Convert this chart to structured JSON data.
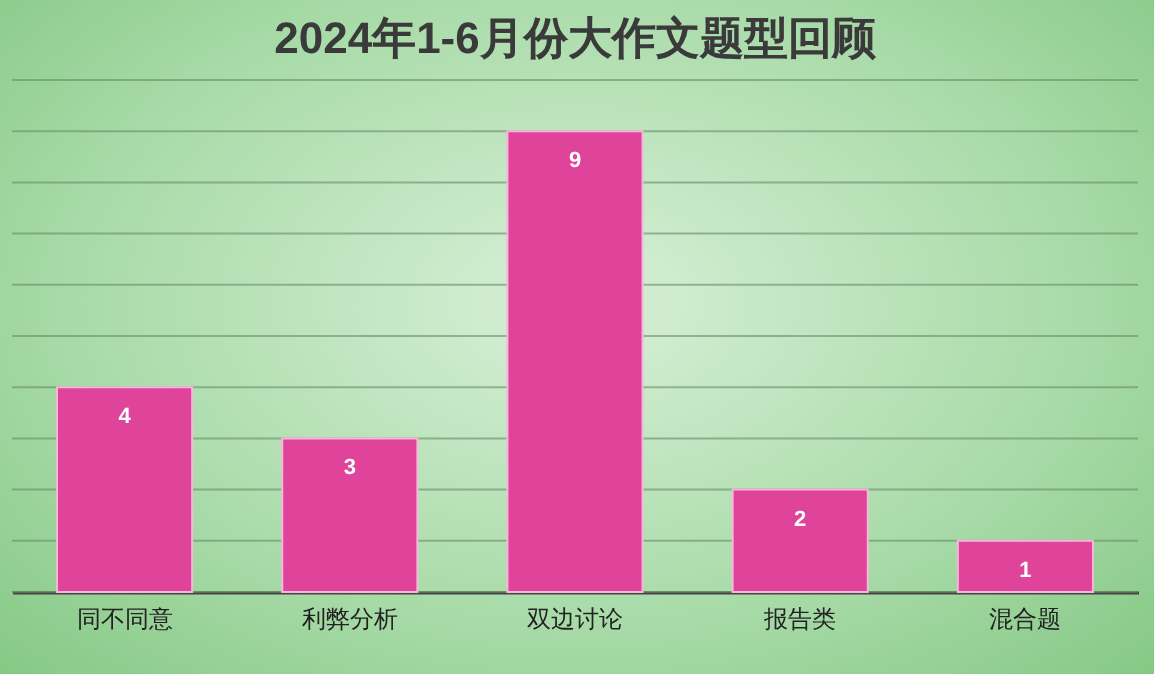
{
  "chart_data": {
    "type": "bar",
    "title": "2024年1-6月份大作文题型回顾",
    "categories": [
      "同不同意",
      "利弊分析",
      "双边讨论",
      "报告类",
      "混合题"
    ],
    "values": [
      4,
      3,
      9,
      2,
      1
    ],
    "color": "#e0449a",
    "ylim": [
      0,
      10
    ],
    "yticks": [
      {
        "value": 0,
        "label": null
      },
      {
        "value": 1,
        "label": null
      },
      {
        "value": 2,
        "label": null
      },
      {
        "value": 3,
        "label": null
      },
      {
        "value": 4,
        "label": null
      },
      {
        "value": 5,
        "label": null
      },
      {
        "value": 6,
        "label": null
      },
      {
        "value": 7,
        "label": null
      },
      {
        "value": 8,
        "label": null
      },
      {
        "value": 9,
        "label": null
      },
      {
        "value": 10,
        "label": null
      }
    ],
    "grid": "y",
    "tick_labels": "x",
    "data_labels": true
  }
}
